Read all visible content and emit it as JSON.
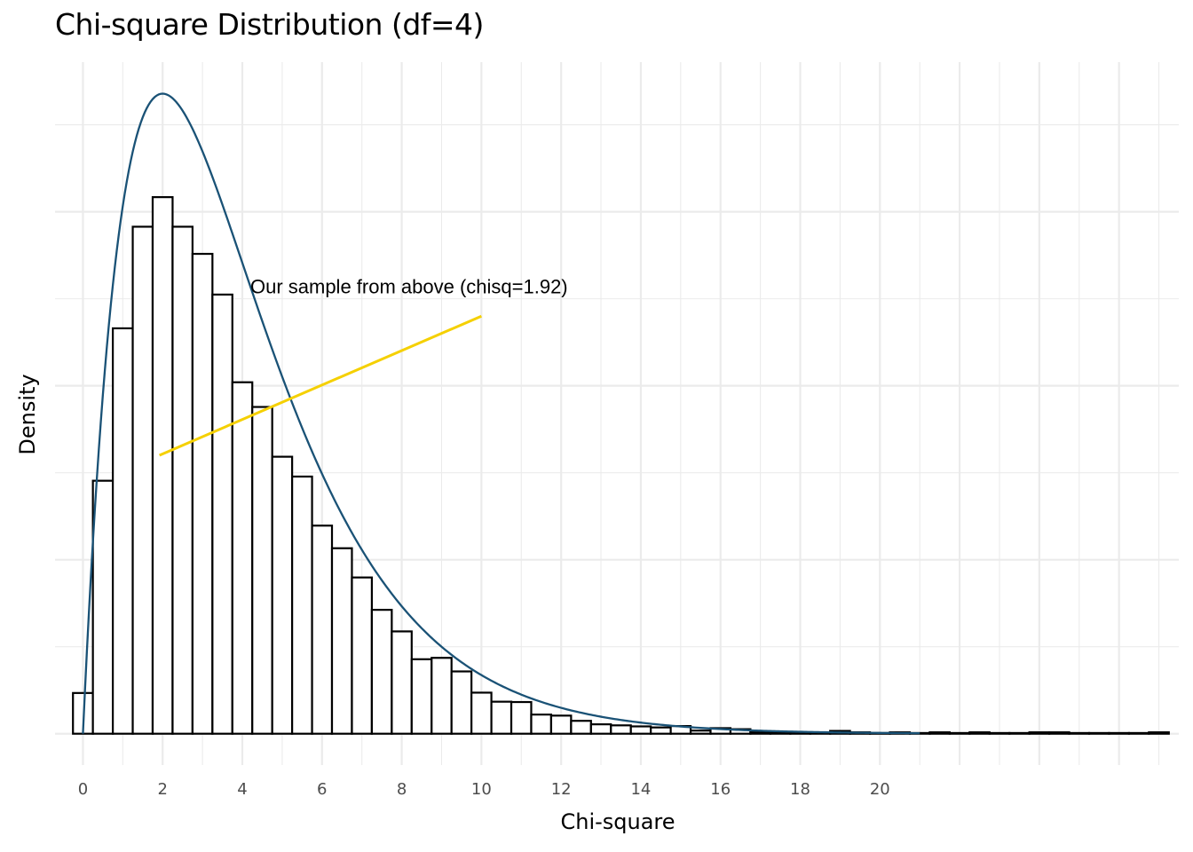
{
  "chart_data": {
    "type": "bar",
    "title": "Chi-square Distribution (df=4)",
    "xlabel": "Chi-square",
    "ylabel": "Density",
    "xlim": [
      -0.7,
      27.5
    ],
    "ylim": [
      -0.009,
      0.193
    ],
    "x_ticks": [
      "0",
      "2",
      "4",
      "6",
      "8",
      "10",
      "12",
      "14",
      "16",
      "18",
      "20"
    ],
    "x_tick_values": [
      0,
      2,
      4,
      6,
      8,
      10,
      12,
      14,
      16,
      18,
      20
    ],
    "grid": true,
    "bin_width": 0.5,
    "histogram": {
      "bin_starts": [
        -0.25,
        0.25,
        0.75,
        1.25,
        1.75,
        2.25,
        2.75,
        3.25,
        3.75,
        4.25,
        4.75,
        5.25,
        5.75,
        6.25,
        6.75,
        7.25,
        7.75,
        8.25,
        8.75,
        9.25,
        9.75,
        10.25,
        10.75,
        11.25,
        11.75,
        12.25,
        12.75,
        13.25,
        13.75,
        14.25,
        14.75,
        15.25,
        15.75,
        16.25,
        16.75,
        17.25,
        17.75,
        18.25,
        18.75,
        19.25,
        19.75,
        20.25,
        20.75,
        21.25,
        21.75,
        22.25,
        22.75,
        23.25,
        23.75,
        24.25,
        24.75,
        25.25,
        25.75,
        26.25,
        26.75
      ],
      "densities": [
        0.0117,
        0.0727,
        0.1165,
        0.1457,
        0.1542,
        0.1457,
        0.1379,
        0.1262,
        0.101,
        0.0939,
        0.0796,
        0.0739,
        0.0598,
        0.0533,
        0.0449,
        0.0356,
        0.0294,
        0.0214,
        0.0218,
        0.0179,
        0.0118,
        0.0092,
        0.0091,
        0.0055,
        0.0052,
        0.0037,
        0.0027,
        0.0024,
        0.0021,
        0.0018,
        0.0022,
        0.0009,
        0.0016,
        0.0013,
        0.0004,
        0.0004,
        0.0004,
        0.0004,
        0.0008,
        0.0004,
        0.0002,
        0.0004,
        0.0002,
        0.0004,
        0.0002,
        0.0004,
        0.0002,
        0.0002,
        0.0004,
        0.0004,
        0.0002,
        0.0002,
        0.0002,
        0.0002,
        0.0004
      ]
    },
    "curve": {
      "name": "Chi-square density (df=4)",
      "df": 4,
      "x_range": [
        0,
        21
      ],
      "color": "#1a5276"
    },
    "annotation": {
      "text": "Our sample from above (chisq=1.92)",
      "x": 4.2,
      "y": 0.1265,
      "segment": {
        "x1": 1.92,
        "y1": 0.08,
        "x2": 10,
        "y2": 0.12
      },
      "color": "#f5d000"
    }
  }
}
